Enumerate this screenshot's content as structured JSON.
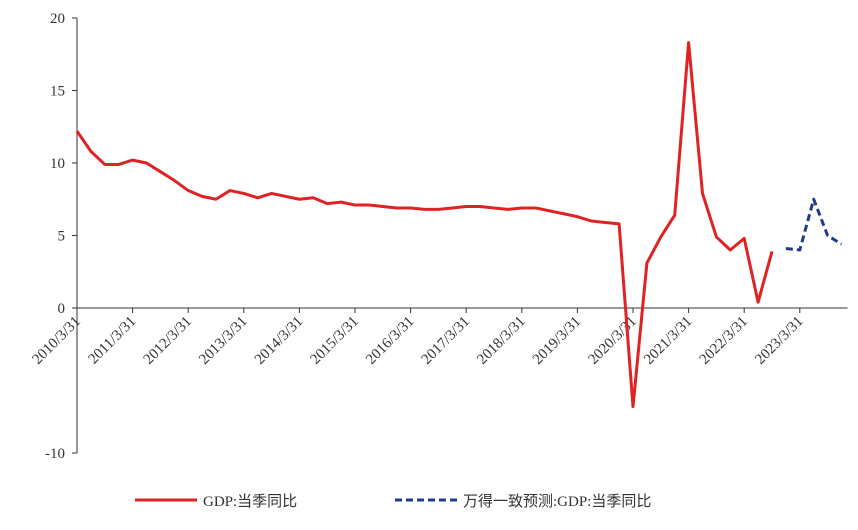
{
  "chart_data": {
    "type": "line",
    "categories": [
      "2010/3/31",
      null,
      null,
      null,
      "2011/3/31",
      null,
      null,
      null,
      "2012/3/31",
      null,
      null,
      null,
      "2013/3/31",
      null,
      null,
      null,
      "2014/3/31",
      null,
      null,
      null,
      "2015/3/31",
      null,
      null,
      null,
      "2016/3/31",
      null,
      null,
      null,
      "2017/3/31",
      null,
      null,
      null,
      "2018/3/31",
      null,
      null,
      null,
      "2019/3/31",
      null,
      null,
      null,
      "2020/3/31",
      null,
      null,
      null,
      "2021/3/31",
      null,
      null,
      null,
      "2022/3/31",
      null,
      null,
      null,
      "2023/3/31",
      null,
      null,
      null
    ],
    "series": [
      {
        "name": "GDP:当季同比",
        "color": "#e02222",
        "dash": false,
        "values": [
          12.2,
          10.8,
          9.9,
          9.9,
          10.2,
          10.0,
          9.4,
          8.8,
          8.1,
          7.7,
          7.5,
          8.1,
          7.9,
          7.6,
          7.9,
          7.7,
          7.5,
          7.6,
          7.2,
          7.3,
          7.1,
          7.1,
          7.0,
          6.9,
          6.9,
          6.8,
          6.8,
          6.9,
          7.0,
          7.0,
          6.9,
          6.8,
          6.9,
          6.9,
          6.7,
          6.5,
          6.3,
          6.0,
          5.9,
          5.8,
          -6.8,
          3.1,
          4.9,
          6.4,
          18.3,
          7.9,
          4.9,
          4.0,
          4.8,
          0.4,
          3.9,
          null,
          null,
          null,
          null,
          null
        ]
      },
      {
        "name": "万得一致预测:GDP:当季同比",
        "color": "#1f3c88",
        "dash": true,
        "values": [
          null,
          null,
          null,
          null,
          null,
          null,
          null,
          null,
          null,
          null,
          null,
          null,
          null,
          null,
          null,
          null,
          null,
          null,
          null,
          null,
          null,
          null,
          null,
          null,
          null,
          null,
          null,
          null,
          null,
          null,
          null,
          null,
          null,
          null,
          null,
          null,
          null,
          null,
          null,
          null,
          null,
          null,
          null,
          null,
          null,
          null,
          null,
          null,
          null,
          null,
          null,
          4.1,
          4.0,
          7.5,
          5.0,
          4.4
        ]
      }
    ],
    "ylim": [
      -10,
      20
    ],
    "yticks": [
      {
        "value": -10,
        "label": "-10"
      },
      0,
      5,
      10,
      15,
      20
    ]
  }
}
